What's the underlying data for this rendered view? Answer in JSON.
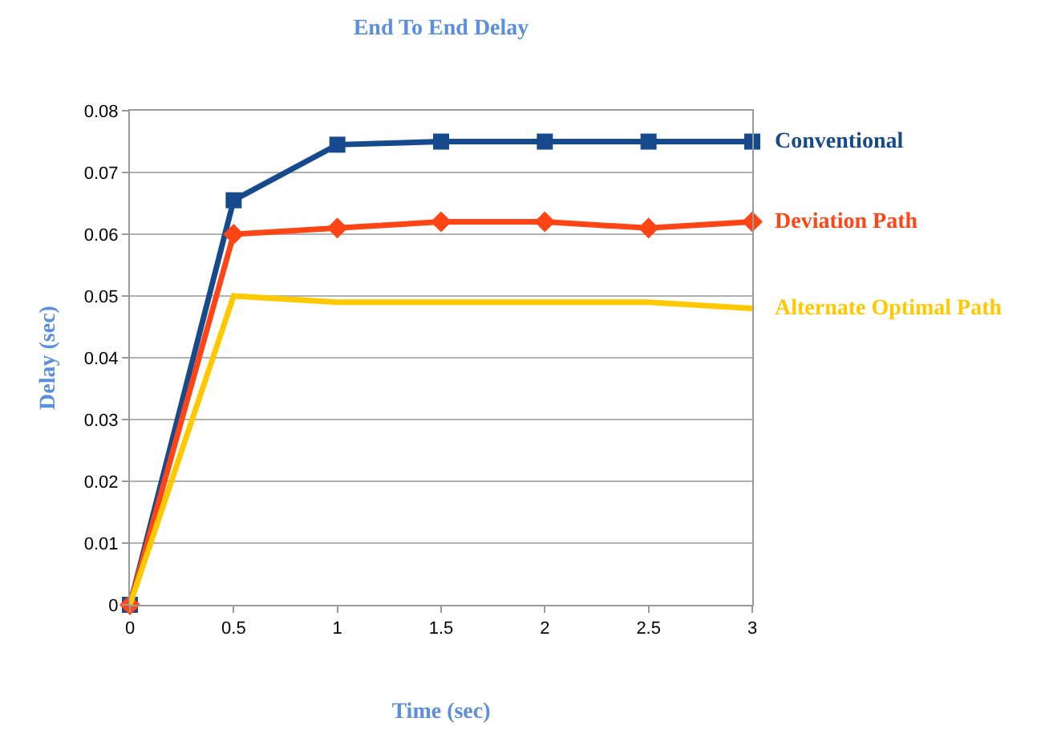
{
  "chart_data": {
    "type": "line",
    "title": "End To End Delay",
    "xlabel": "Time (sec)",
    "ylabel": "Delay (sec)",
    "x": [
      0,
      0.5,
      1,
      1.5,
      2,
      2.5,
      3
    ],
    "series": [
      {
        "name": "Conventional",
        "color": "#174a8c",
        "marker": "square",
        "values": [
          0,
          0.0655,
          0.0745,
          0.075,
          0.075,
          0.075,
          0.075
        ]
      },
      {
        "name": "Deviation Path",
        "color": "#ff4515",
        "marker": "diamond",
        "values": [
          0,
          0.06,
          0.061,
          0.062,
          0.062,
          0.061,
          0.062
        ]
      },
      {
        "name": "Alternate Optimal Path",
        "color": "#ffc900",
        "marker": "none",
        "values": [
          0,
          0.05,
          0.049,
          0.049,
          0.049,
          0.049,
          0.048
        ]
      }
    ],
    "xlim": [
      0,
      3
    ],
    "xticks": [
      0,
      0.5,
      1,
      1.5,
      2,
      2.5,
      3
    ],
    "ylim": [
      0,
      0.08
    ],
    "yticks": [
      0,
      0.01,
      0.02,
      0.03,
      0.04,
      0.05,
      0.06,
      0.07,
      0.08
    ],
    "grid": "y",
    "legend": false
  }
}
